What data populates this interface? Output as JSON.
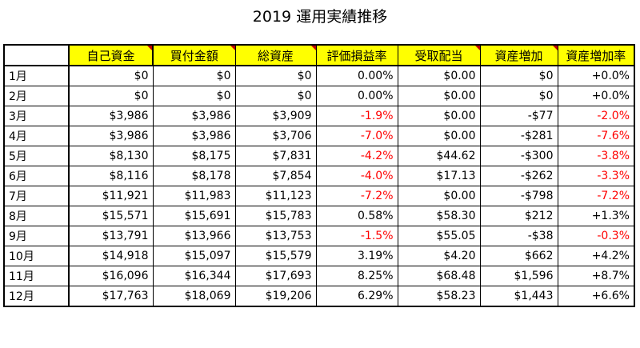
{
  "title": "2019 運用実績推移",
  "headers": [
    "",
    "自己資金",
    "買付金額",
    "総資産",
    "評価損益率",
    "受取配当",
    "資産増加",
    "資産増加率"
  ],
  "rows": [
    [
      "1月",
      "$0",
      "$0",
      "$0",
      "0.00%",
      "$0.00",
      "$0",
      "+0.0%"
    ],
    [
      "2月",
      "$0",
      "$0",
      "$0",
      "0.00%",
      "$0.00",
      "$0",
      "+0.0%"
    ],
    [
      "3月",
      "$3,986",
      "$3,986",
      "$3,909",
      "-1.9%",
      "$0.00",
      "-$77",
      "-2.0%"
    ],
    [
      "4月",
      "$3,986",
      "$3,986",
      "$3,706",
      "-7.0%",
      "$0.00",
      "-$281",
      "-7.6%"
    ],
    [
      "5月",
      "$8,130",
      "$8,175",
      "$7,831",
      "-4.2%",
      "$44.62",
      "-$300",
      "-3.8%"
    ],
    [
      "6月",
      "$8,116",
      "$8,178",
      "$7,854",
      "-4.0%",
      "$17.13",
      "-$262",
      "-3.3%"
    ],
    [
      "7月",
      "$11,921",
      "$11,983",
      "$11,123",
      "-7.2%",
      "$0.00",
      "-$798",
      "-7.2%"
    ],
    [
      "8月",
      "$15,571",
      "$15,691",
      "$15,783",
      "0.58%",
      "$58.30",
      "$212",
      "+1.3%"
    ],
    [
      "9月",
      "$13,791",
      "$13,966",
      "$13,753",
      "-1.5%",
      "$55.05",
      "-$38",
      "-0.3%"
    ],
    [
      "10月",
      "$14,918",
      "$15,097",
      "$15,579",
      "3.19%",
      "$4.20",
      "$662",
      "+4.2%"
    ],
    [
      "11月",
      "$16,096",
      "$16,344",
      "$17,693",
      "8.25%",
      "$68.48",
      "$1,596",
      "+8.7%"
    ],
    [
      "12月",
      "$17,763",
      "$18,069",
      "$19,206",
      "6.29%",
      "$58.23",
      "$1,443",
      "+6.6%"
    ]
  ],
  "colors": {
    "header_fill": "#ffff00",
    "negative_text": "#ff0000",
    "comment_marker": "#c00000"
  }
}
